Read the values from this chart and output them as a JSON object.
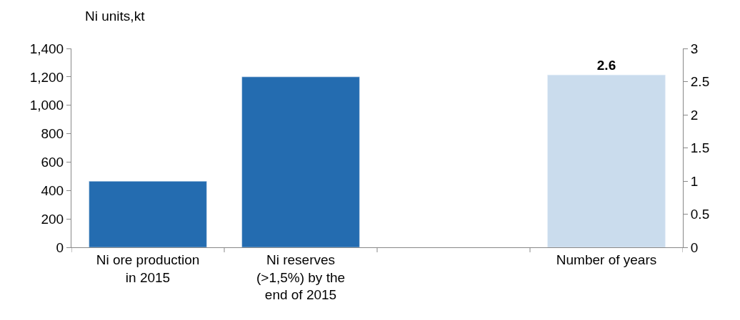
{
  "chart_data": {
    "type": "bar",
    "ylabel": "Ni units,kt",
    "categories": [
      "Ni ore production in 2015",
      "Ni reserves (>1,5%) by the end of 2015",
      null,
      "Number of years"
    ],
    "series": [
      {
        "color": "#246cb0",
        "values": [
          465,
          1200,
          null,
          null
        ]
      },
      {
        "color": "#cadced",
        "values": [
          null,
          null,
          null,
          2.6
        ],
        "axis": "y2",
        "value_labels": [
          null,
          null,
          null,
          "2.6"
        ]
      }
    ],
    "ylim": [
      0,
      1400
    ],
    "yticks": [
      0,
      {
        "value": 200,
        "label": "200"
      },
      {
        "value": 400,
        "label": "400"
      },
      {
        "value": 600,
        "label": "600"
      },
      {
        "value": 800,
        "label": "800"
      },
      {
        "value": 1000,
        "label": "1,000"
      },
      {
        "value": 1200,
        "label": "1,200"
      },
      {
        "value": 1400,
        "label": "1,400"
      }
    ],
    "y2lim": [
      0,
      3
    ],
    "y2ticks": [
      0,
      0.5,
      1,
      1.5,
      2,
      2.5,
      3
    ],
    "legend": false
  }
}
